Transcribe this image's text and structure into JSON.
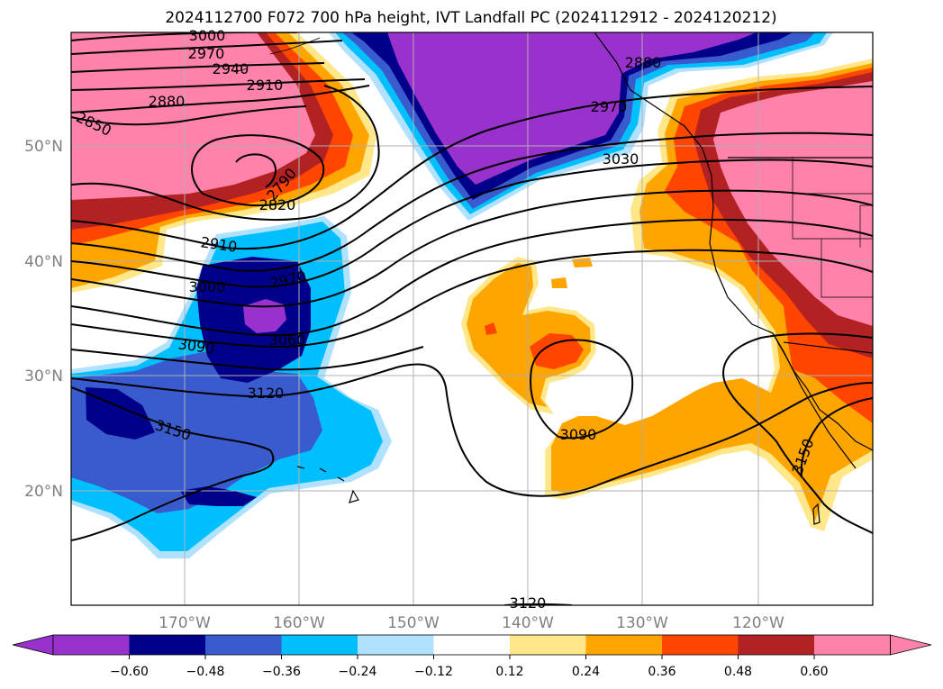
{
  "title": "2024112700 F072 700 hPa height, IVT Landfall PC (2024112912 - 2024120212)",
  "map": {
    "lon_labels": [
      "170°W",
      "160°W",
      "150°W",
      "140°W",
      "130°W",
      "120°W"
    ],
    "lat_labels": [
      "50°N",
      "40°N",
      "30°N",
      "20°N"
    ],
    "contour_labels": [
      {
        "text": "3000"
      },
      {
        "text": "2970"
      },
      {
        "text": "2940"
      },
      {
        "text": "2910"
      },
      {
        "text": "2880"
      },
      {
        "text": "2850"
      },
      {
        "text": "2790"
      },
      {
        "text": "2820"
      },
      {
        "text": "2910"
      },
      {
        "text": "2970"
      },
      {
        "text": "3000"
      },
      {
        "text": "3060"
      },
      {
        "text": "3090"
      },
      {
        "text": "3120"
      },
      {
        "text": "3150"
      },
      {
        "text": "2880"
      },
      {
        "text": "2970"
      },
      {
        "text": "3030"
      },
      {
        "text": "3090"
      },
      {
        "text": "3150"
      },
      {
        "text": "3120"
      }
    ]
  },
  "colorbar": {
    "tick_labels": [
      "−0.60",
      "−0.48",
      "−0.36",
      "−0.24",
      "−0.12",
      "0.12",
      "0.24",
      "0.36",
      "0.48",
      "0.60"
    ],
    "colors": [
      "#9932cc",
      "#00008b",
      "#3a5bcd",
      "#00bfff",
      "#b0e2ff",
      "#ffffff",
      "#ffe78a",
      "#ffa500",
      "#ff4500",
      "#b22222",
      "#ff82ab",
      "#ff82ab"
    ]
  }
}
